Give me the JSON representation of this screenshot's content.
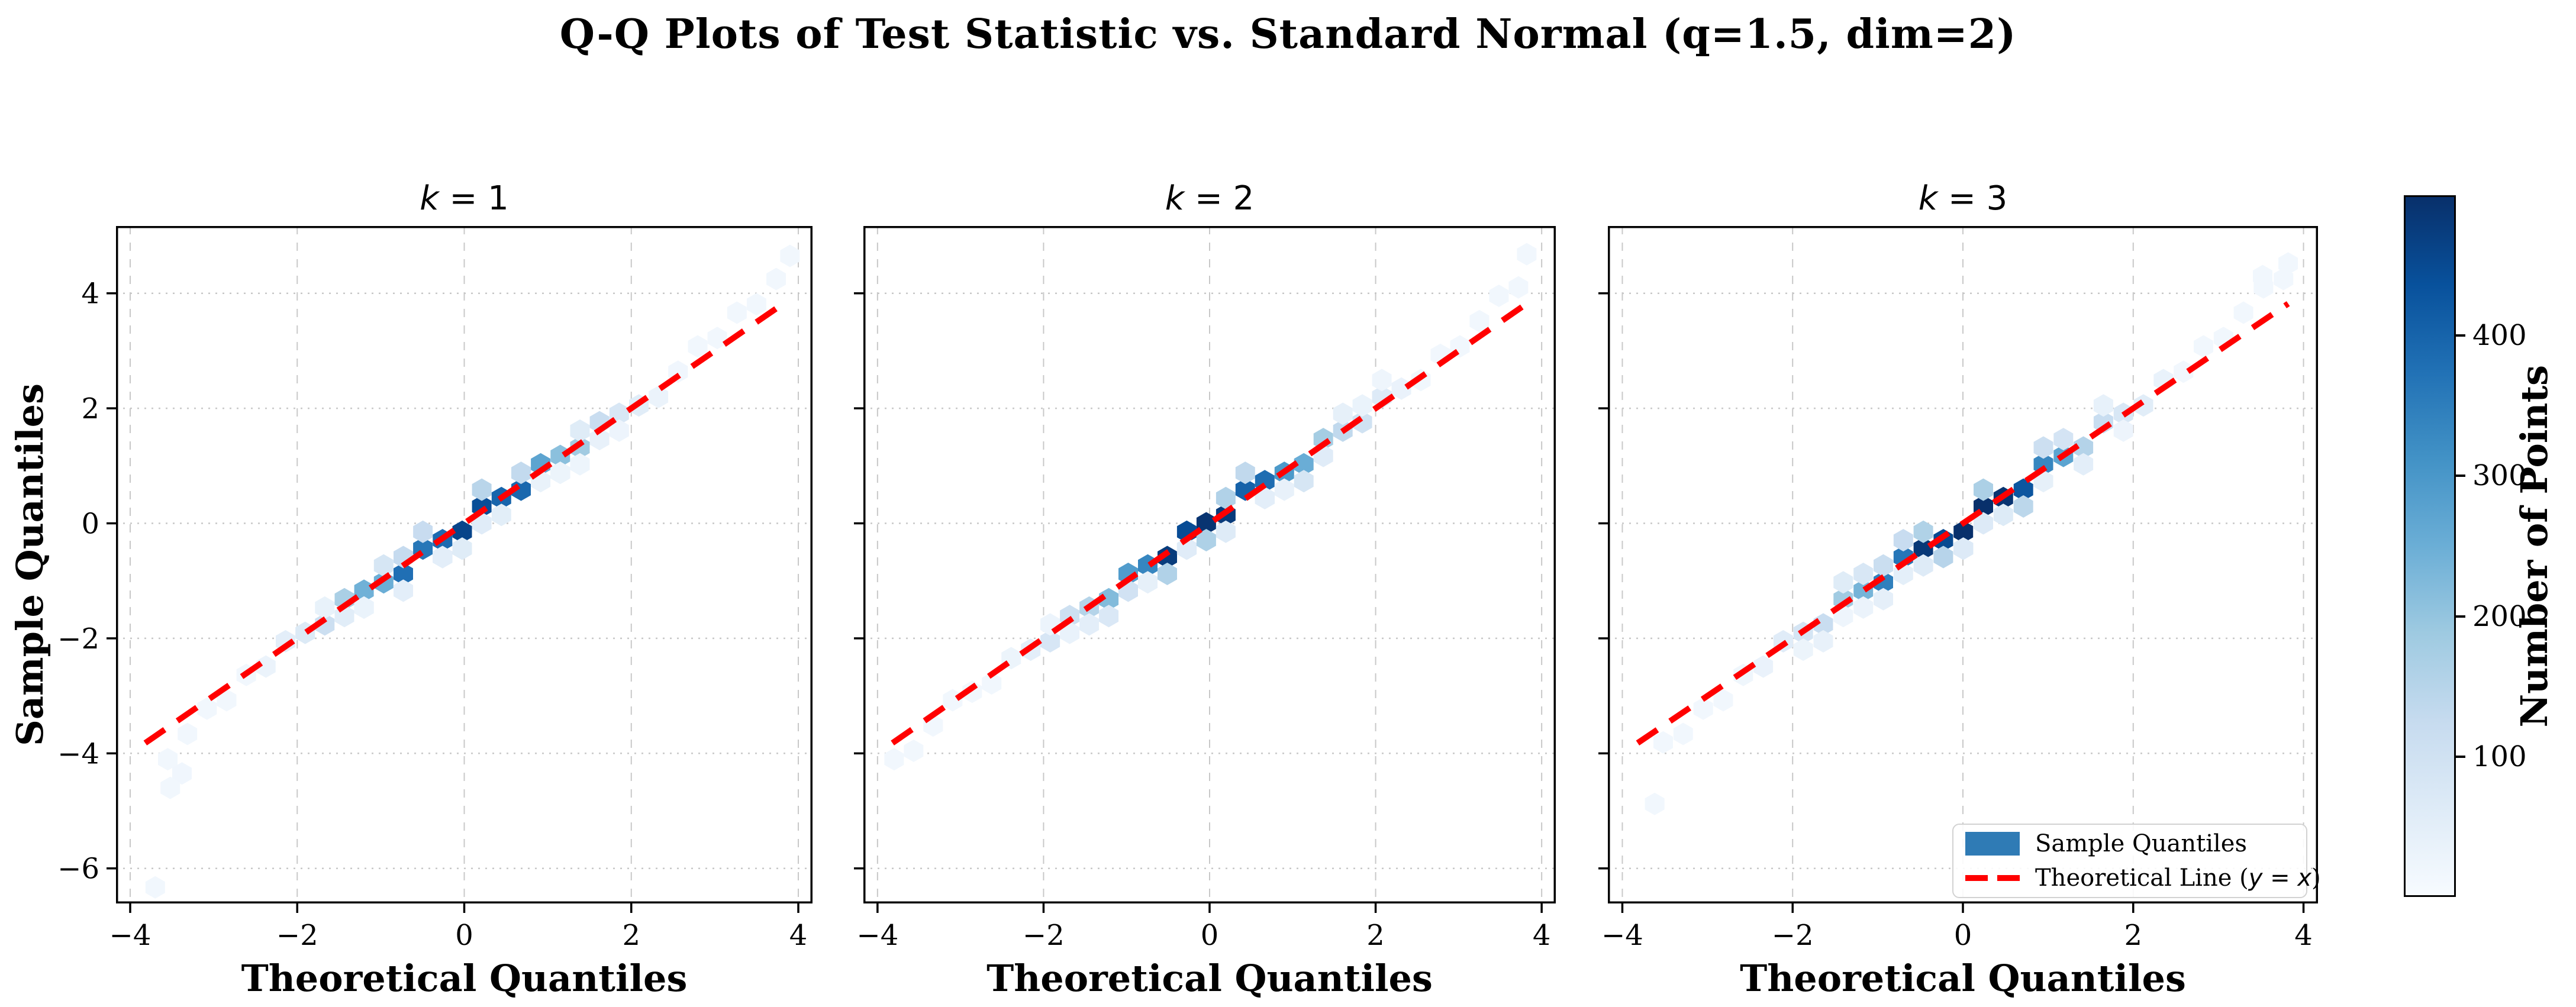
{
  "figure": {
    "title": "Q-Q Plots of Test Statistic vs. Standard Normal (q=1.5, dim=2)",
    "background": "#ffffff"
  },
  "axes": {
    "x_label": "Theoretical Quantiles",
    "y_label": "Sample Quantiles",
    "x_ticks": [
      -4,
      -2,
      0,
      2,
      4
    ],
    "y_ticks": [
      4,
      2,
      0,
      -2,
      -4,
      -6
    ],
    "x_range": [
      -4.17,
      4.17
    ],
    "y_range": [
      -6.61,
      5.17
    ],
    "grid_color": "#c8c8c8",
    "spine_color": "#000000"
  },
  "colorbar": {
    "label": "Number of Points",
    "ticks": [
      100,
      200,
      300,
      400
    ],
    "vmin": 0,
    "vmax": 500,
    "colormap": "Blues",
    "colors": [
      "#f7fbff",
      "#deebf7",
      "#c6dbef",
      "#9ecae1",
      "#6baed6",
      "#4292c6",
      "#2171b5",
      "#08519c",
      "#08306b"
    ]
  },
  "legend": {
    "items": [
      {
        "label": "Sample Quantiles",
        "swatch": "patch",
        "color": "#2f7bb5"
      },
      {
        "parts": [
          "Theoretical Line (",
          "y = x",
          ")"
        ],
        "swatch": "dashes",
        "color": "#ff0000"
      }
    ]
  },
  "chart_data": [
    {
      "type": "hexbin-qq",
      "title_var": "k",
      "title_rest": "= 1",
      "cmax": 460,
      "seed": 11,
      "x_start": -3.55,
      "x_end": 3.82,
      "tail_low": {
        "start": -2.5,
        "span": 1.3,
        "coef": -1.05,
        "pow": 2.0
      },
      "tail_high": {
        "start": 2.2,
        "span": 1.6,
        "coef": 0.62,
        "pow": 1.5
      },
      "outliers": [
        [
          -3.7,
          -6.33,
          16
        ],
        [
          -3.38,
          -4.35,
          18
        ],
        [
          -3.52,
          -4.6,
          16
        ],
        [
          3.9,
          4.65,
          16
        ]
      ]
    },
    {
      "type": "hexbin-qq",
      "title_var": "k",
      "title_rest": "= 2",
      "cmax": 500,
      "seed": 22,
      "x_start": -3.8,
      "x_end": 3.85,
      "tail_low": {
        "start": -2.7,
        "span": 1.2,
        "coef": -0.42,
        "pow": 1.6
      },
      "tail_high": {
        "start": 2.3,
        "span": 1.6,
        "coef": 0.55,
        "pow": 1.5
      },
      "outliers": [
        [
          3.82,
          4.68,
          16
        ]
      ]
    },
    {
      "type": "hexbin-qq",
      "title_var": "k",
      "title_rest": "= 3",
      "cmax": 480,
      "seed": 33,
      "x_start": -3.52,
      "x_end": 3.8,
      "tail_low": {
        "start": -2.3,
        "span": 1.5,
        "coef": -0.48,
        "pow": 1.4
      },
      "tail_high": {
        "start": 2.2,
        "span": 1.6,
        "coef": 0.58,
        "pow": 1.5
      },
      "outliers": [
        [
          -3.62,
          -4.88,
          16
        ],
        [
          3.52,
          4.3,
          16
        ],
        [
          3.82,
          4.52,
          16
        ]
      ]
    }
  ],
  "line": {
    "color": "#ff0000",
    "x0": -3.82,
    "y0": -3.82,
    "x1": 3.82,
    "y1": 3.82,
    "style": "dashed"
  }
}
